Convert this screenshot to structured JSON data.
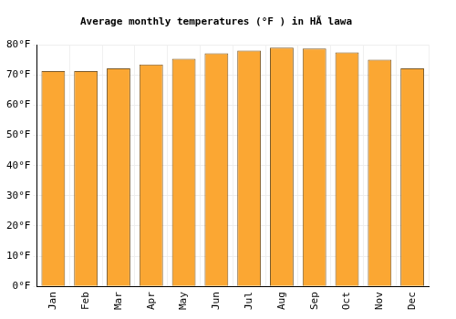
{
  "chart_data": {
    "type": "bar",
    "title": "Average monthly temperatures (°F ) in HÃ lawa",
    "categories": [
      "Jan",
      "Feb",
      "Mar",
      "Apr",
      "May",
      "Jun",
      "Jul",
      "Aug",
      "Sep",
      "Oct",
      "Nov",
      "Dec"
    ],
    "values": [
      71.3,
      71.3,
      72.2,
      73.5,
      75.4,
      77.2,
      78.1,
      79.1,
      78.8,
      77.5,
      75.1,
      72.2
    ],
    "color": "#fba733",
    "ylim": [
      0,
      80
    ],
    "yticks": [
      {
        "value": 0,
        "label": "0°F"
      },
      {
        "value": 10,
        "label": "10°F"
      },
      {
        "value": 20,
        "label": "20°F"
      },
      {
        "value": 30,
        "label": "30°F"
      },
      {
        "value": 40,
        "label": "40°F"
      },
      {
        "value": 50,
        "label": "50°F"
      },
      {
        "value": 60,
        "label": "60°F"
      },
      {
        "value": 70,
        "label": "70°F"
      },
      {
        "value": 80,
        "label": "80°F"
      }
    ],
    "grid": true
  }
}
